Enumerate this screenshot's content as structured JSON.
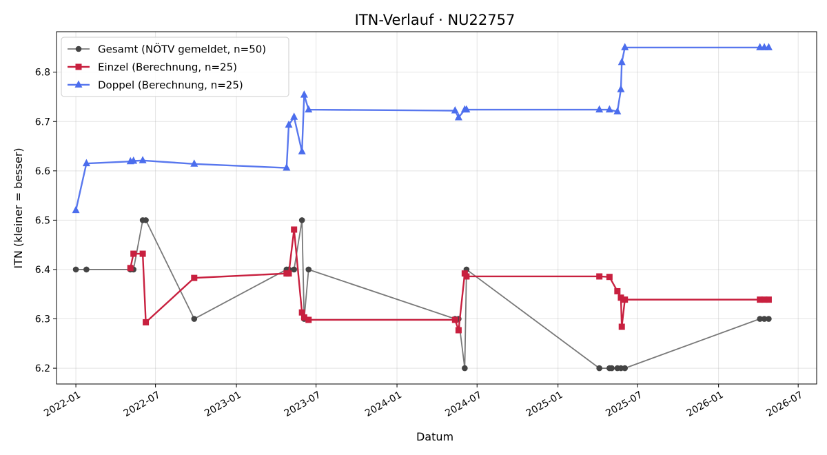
{
  "chart_data": {
    "type": "line",
    "title": "ITN-Verlauf · NU22757",
    "xlabel": "Datum",
    "ylabel": "ITN  (kleiner = besser)",
    "xlim": [
      "2021-11-18",
      "2026-08-12"
    ],
    "ylim": [
      6.168,
      6.882
    ],
    "x_ticks": [
      "2022-01",
      "2022-07",
      "2023-01",
      "2023-07",
      "2024-01",
      "2024-07",
      "2025-01",
      "2025-07",
      "2026-01",
      "2026-07"
    ],
    "y_ticks": [
      "6.2",
      "6.3",
      "6.4",
      "6.5",
      "6.6",
      "6.7",
      "6.8"
    ],
    "grid": true,
    "legend_position": "top-left",
    "series": [
      {
        "name": "Gesamt (NÖTV gemeldet, n=50)",
        "color": "#444444",
        "marker": "circle",
        "points": [
          [
            "2022-01-01",
            6.4
          ],
          [
            "2022-01-25",
            6.4
          ],
          [
            "2022-05-05",
            6.4
          ],
          [
            "2022-05-12",
            6.4
          ],
          [
            "2022-06-02",
            6.5
          ],
          [
            "2022-06-09",
            6.5
          ],
          [
            "2022-09-27",
            6.3
          ],
          [
            "2023-04-25",
            6.4
          ],
          [
            "2023-04-30",
            6.4
          ],
          [
            "2023-05-12",
            6.4
          ],
          [
            "2023-05-30",
            6.5
          ],
          [
            "2023-06-04",
            6.3
          ],
          [
            "2023-06-14",
            6.4
          ],
          [
            "2024-05-12",
            6.3
          ],
          [
            "2024-05-20",
            6.3
          ],
          [
            "2024-06-03",
            6.2
          ],
          [
            "2024-06-07",
            6.4
          ],
          [
            "2025-04-05",
            6.2
          ],
          [
            "2025-04-28",
            6.2
          ],
          [
            "2025-05-03",
            6.2
          ],
          [
            "2025-05-16",
            6.2
          ],
          [
            "2025-05-24",
            6.2
          ],
          [
            "2025-06-02",
            6.2
          ],
          [
            "2026-04-05",
            6.3
          ],
          [
            "2026-04-15",
            6.3
          ],
          [
            "2026-04-25",
            6.3
          ]
        ]
      },
      {
        "name": "Einzel (Berechnung, n=25)",
        "color": "#c8203f",
        "marker": "square",
        "points": [
          [
            "2022-05-05",
            6.403
          ],
          [
            "2022-05-12",
            6.432
          ],
          [
            "2022-06-02",
            6.432
          ],
          [
            "2022-06-09",
            6.293
          ],
          [
            "2022-09-27",
            6.383
          ],
          [
            "2023-04-25",
            6.392
          ],
          [
            "2023-04-30",
            6.392
          ],
          [
            "2023-05-12",
            6.481
          ],
          [
            "2023-05-30",
            6.313
          ],
          [
            "2023-06-04",
            6.303
          ],
          [
            "2023-06-14",
            6.298
          ],
          [
            "2024-05-12",
            6.298
          ],
          [
            "2024-05-20",
            6.277
          ],
          [
            "2024-06-03",
            6.392
          ],
          [
            "2024-06-07",
            6.386
          ],
          [
            "2025-04-05",
            6.386
          ],
          [
            "2025-04-28",
            6.385
          ],
          [
            "2025-05-16",
            6.356
          ],
          [
            "2025-05-24",
            6.343
          ],
          [
            "2025-05-26",
            6.284
          ],
          [
            "2025-06-02",
            6.339
          ],
          [
            "2026-04-05",
            6.339
          ],
          [
            "2026-04-15",
            6.339
          ],
          [
            "2026-04-25",
            6.339
          ]
        ]
      },
      {
        "name": "Doppel (Berechnung, n=25)",
        "color": "#4b6ded",
        "marker": "triangle",
        "points": [
          [
            "2022-01-01",
            6.52
          ],
          [
            "2022-01-25",
            6.615
          ],
          [
            "2022-05-05",
            6.619
          ],
          [
            "2022-05-12",
            6.62
          ],
          [
            "2022-06-02",
            6.621
          ],
          [
            "2022-09-27",
            6.614
          ],
          [
            "2023-04-25",
            6.606
          ],
          [
            "2023-04-30",
            6.693
          ],
          [
            "2023-05-12",
            6.709
          ],
          [
            "2023-05-30",
            6.639
          ],
          [
            "2023-06-04",
            6.754
          ],
          [
            "2023-06-14",
            6.724
          ],
          [
            "2024-05-12",
            6.722
          ],
          [
            "2024-05-20",
            6.708
          ],
          [
            "2024-06-03",
            6.724
          ],
          [
            "2024-06-07",
            6.724
          ],
          [
            "2025-04-05",
            6.724
          ],
          [
            "2025-04-28",
            6.724
          ],
          [
            "2025-05-16",
            6.72
          ],
          [
            "2025-05-24",
            6.765
          ],
          [
            "2025-05-26",
            6.82
          ],
          [
            "2025-06-02",
            6.85
          ],
          [
            "2026-04-05",
            6.85
          ],
          [
            "2026-04-15",
            6.85
          ],
          [
            "2026-04-25",
            6.85
          ]
        ]
      }
    ]
  }
}
